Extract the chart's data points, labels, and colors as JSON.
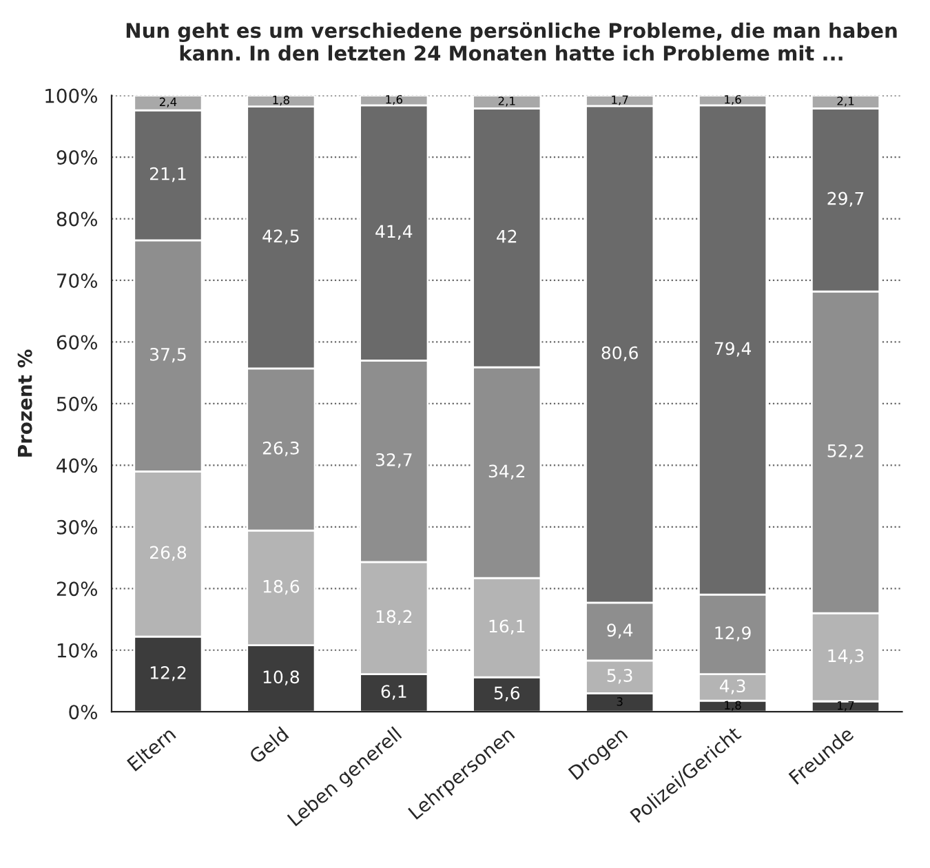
{
  "chart_data": {
    "type": "bar",
    "stacked": true,
    "title": "Nun geht es um verschiedene persönliche Probleme, die man haben kann. In den letzten 24 Monaten hatte ich Probleme mit ...",
    "ylabel": "Prozent %",
    "categories": [
      "Eltern",
      "Geld",
      "Leben generell",
      "Lehrpersonen",
      "Drogen",
      "Polizei/Gericht",
      "Freunde"
    ],
    "series": [
      {
        "color": "#3c3c3c",
        "values": [
          12.2,
          10.8,
          6.1,
          5.6,
          3,
          1.8,
          1.7
        ],
        "value_labels": [
          "12,2",
          "10,8",
          "6,1",
          "5,6",
          "3",
          "1,8",
          "1,7"
        ]
      },
      {
        "color": "#b4b4b4",
        "values": [
          26.8,
          18.6,
          18.2,
          16.1,
          5.3,
          4.3,
          14.3
        ],
        "value_labels": [
          "26,8",
          "18,6",
          "18,2",
          "16,1",
          "5,3",
          "4,3",
          "14,3"
        ]
      },
      {
        "color": "#8e8e8e",
        "values": [
          37.5,
          26.3,
          32.7,
          34.2,
          9.4,
          12.9,
          52.2
        ],
        "value_labels": [
          "37,5",
          "26,3",
          "32,7",
          "34,2",
          "9,4",
          "12,9",
          "52,2"
        ]
      },
      {
        "color": "#6a6a6a",
        "values": [
          21.1,
          42.5,
          41.4,
          42,
          80.6,
          79.4,
          29.7
        ],
        "value_labels": [
          "21,1",
          "42,5",
          "41,4",
          "42",
          "80,6",
          "79,4",
          "29,7"
        ]
      },
      {
        "color": "#a8a8a8",
        "values": [
          2.4,
          1.8,
          1.6,
          2.1,
          1.7,
          1.6,
          2.1
        ],
        "value_labels": [
          "2,4",
          "1,8",
          "1,6",
          "2,1",
          "1,7",
          "1,6",
          "2,1"
        ]
      }
    ],
    "ylim": [
      0,
      100
    ],
    "yticks": [
      {
        "value": 0,
        "label": "0%"
      },
      {
        "value": 10,
        "label": "10%"
      },
      {
        "value": 20,
        "label": "20%"
      },
      {
        "value": 30,
        "label": "30%"
      },
      {
        "value": 40,
        "label": "40%"
      },
      {
        "value": 50,
        "label": "50%"
      },
      {
        "value": 60,
        "label": "60%"
      },
      {
        "value": 70,
        "label": "70%"
      },
      {
        "value": 80,
        "label": "80%"
      },
      {
        "value": 90,
        "label": "90%"
      },
      {
        "value": 100,
        "label": "100%"
      }
    ],
    "grid": "y"
  }
}
